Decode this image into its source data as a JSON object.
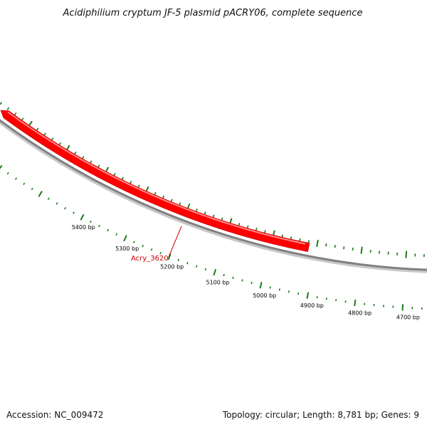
{
  "title": "Acidiphilium cryptum JF-5 plasmid pACRY06, complete sequence",
  "footer": {
    "accession": "Accession: NC_009472",
    "summary": "Topology: circular; Length: 8,781 bp; Genes: 9"
  },
  "map": {
    "topology": "circular",
    "length_bp": 8781,
    "scale_labels": [
      {
        "bp": 5400,
        "text": "5400 bp"
      },
      {
        "bp": 5300,
        "text": "5300 bp"
      },
      {
        "bp": 5200,
        "text": "5200 bp"
      },
      {
        "bp": 5100,
        "text": "5100 bp"
      },
      {
        "bp": 5000,
        "text": "5000 bp"
      },
      {
        "bp": 4900,
        "text": "4900 bp"
      },
      {
        "bp": 4800,
        "text": "4800 bp"
      },
      {
        "bp": 4700,
        "text": "4700 bp"
      }
    ],
    "genes": [
      {
        "name": "Acry_3620",
        "strand": "reverse",
        "color": "#ff0000"
      }
    ],
    "colors": {
      "backbone": "#808080",
      "ticks": "#1a7a1a",
      "gene": "#ff0000",
      "gene_label": "#cc0000"
    }
  }
}
